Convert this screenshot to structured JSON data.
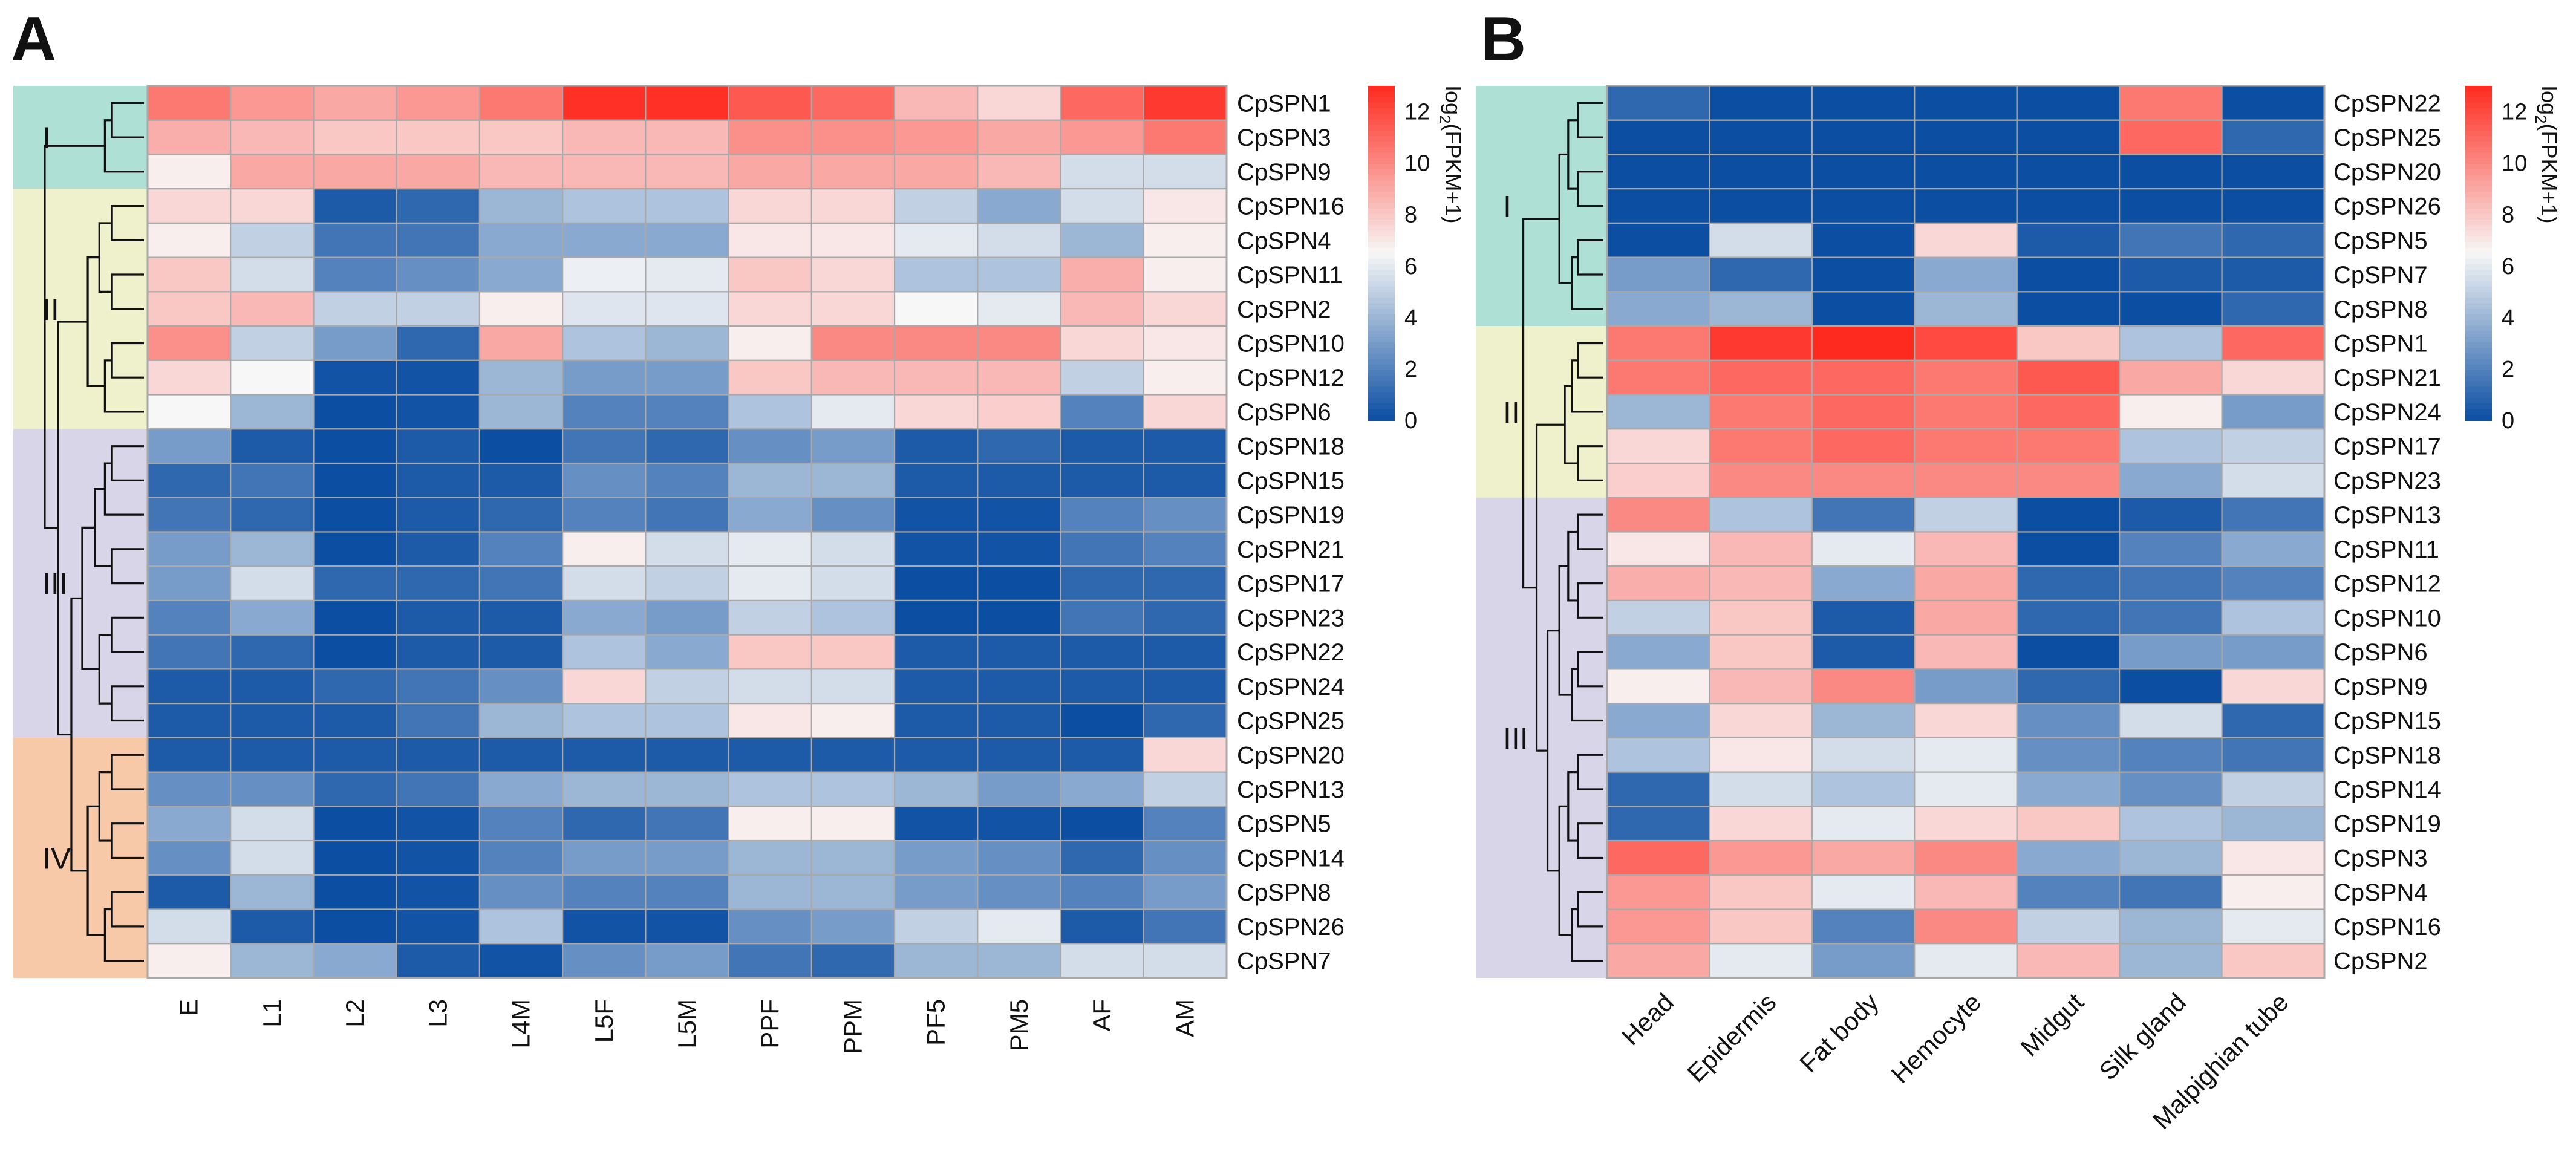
{
  "colors": {
    "low": "#0b4ea2",
    "mid": "#f7f7f7",
    "high": "#ff2a1f",
    "grid": "#a9a9a9",
    "group_I": "#aee0d6",
    "group_II": "#eff0cc",
    "group_III": "#d9d5e8",
    "group_IV": "#f7c9a8"
  },
  "chart_data": [
    {
      "panel": "A",
      "type": "heatmap",
      "title": "",
      "colorbar": {
        "label": "log2(FPKM+1)",
        "label_main": "log",
        "label_sub": "2",
        "label_rest": "(FPKM+1)",
        "min": 0,
        "max": 13,
        "ticks": [
          0,
          2,
          4,
          6,
          8,
          10,
          12
        ]
      },
      "columns": [
        "E",
        "L1",
        "L2",
        "L3",
        "L4M",
        "L5F",
        "L5M",
        "PPF",
        "PPM",
        "PF5",
        "PM5",
        "AF",
        "AM"
      ],
      "rows": [
        "CpSPN1",
        "CpSPN3",
        "CpSPN9",
        "CpSPN16",
        "CpSPN4",
        "CpSPN11",
        "CpSPN2",
        "CpSPN10",
        "CpSPN12",
        "CpSPN6",
        "CpSPN18",
        "CpSPN15",
        "CpSPN19",
        "CpSPN21",
        "CpSPN17",
        "CpSPN23",
        "CpSPN22",
        "CpSPN24",
        "CpSPN25",
        "CpSPN20",
        "CpSPN13",
        "CpSPN5",
        "CpSPN14",
        "CpSPN8",
        "CpSPN26",
        "CpSPN7"
      ],
      "values": [
        [
          10.5,
          9.5,
          9,
          9.5,
          10.5,
          12.8,
          12.8,
          11.5,
          11,
          8.5,
          7.5,
          11,
          12.5
        ],
        [
          8.8,
          8.5,
          8,
          8,
          8,
          8.5,
          8.5,
          9.8,
          9.8,
          9.5,
          9,
          9.5,
          10.5
        ],
        [
          6.8,
          9,
          9,
          9,
          8.5,
          8.5,
          8.5,
          9,
          9,
          9,
          8.5,
          5.5,
          5.5
        ],
        [
          7.5,
          7.5,
          0.5,
          1,
          4,
          4.5,
          4.5,
          7.5,
          7.5,
          5,
          3.5,
          5.5,
          7
        ],
        [
          6.8,
          5,
          1.5,
          1.5,
          3.5,
          3.5,
          3.5,
          7,
          7,
          6,
          5.5,
          4,
          6.8
        ],
        [
          8,
          5.5,
          2,
          2.5,
          3.5,
          6.2,
          6,
          8,
          7.5,
          4.5,
          4.5,
          8.8,
          6.8
        ],
        [
          8,
          8.5,
          5,
          5,
          6.8,
          5.8,
          5.8,
          7.5,
          7.5,
          6.5,
          6,
          8.5,
          7.5
        ],
        [
          9.8,
          5,
          3,
          1,
          9,
          4.5,
          4,
          6.8,
          10,
          10,
          10,
          7.5,
          7
        ],
        [
          7.5,
          6.5,
          0.2,
          0.2,
          4,
          3,
          3,
          8,
          8.5,
          8.5,
          8.5,
          5,
          6.8
        ],
        [
          6.5,
          4,
          0,
          0.2,
          4,
          2,
          2,
          4.5,
          6,
          7.5,
          7.8,
          2,
          7.5
        ],
        [
          3,
          0.5,
          0,
          0.5,
          0,
          1.5,
          1,
          2.5,
          3,
          0.5,
          1,
          0.5,
          0.5
        ],
        [
          1,
          1.5,
          0,
          0.5,
          0.5,
          2.5,
          2,
          4,
          4,
          0.5,
          0.5,
          0.5,
          0.5
        ],
        [
          1.5,
          1,
          0,
          0.5,
          1,
          2,
          1.5,
          3.5,
          2.5,
          0.2,
          0.2,
          2,
          2.5
        ],
        [
          3,
          4,
          0,
          0.5,
          2,
          6.8,
          5.5,
          6,
          5.5,
          0.2,
          0.2,
          1.5,
          2
        ],
        [
          3,
          5.5,
          1,
          1,
          1.5,
          5.5,
          5,
          6,
          5.5,
          0,
          0,
          1,
          1
        ],
        [
          2,
          3.5,
          0,
          0.5,
          0.5,
          3.5,
          3,
          5,
          4.5,
          0,
          0,
          1.5,
          1
        ],
        [
          1.5,
          1,
          0,
          0.5,
          0.5,
          4.5,
          3.5,
          8,
          8,
          0.5,
          0.5,
          0.5,
          0.5
        ],
        [
          0.5,
          0.5,
          1,
          1.5,
          2.5,
          7.5,
          5,
          5.5,
          5.5,
          0.5,
          0.5,
          0.5,
          0.5
        ],
        [
          0.5,
          0.5,
          0.5,
          1.5,
          4,
          4.5,
          4.5,
          7,
          6.8,
          0.5,
          0.5,
          0,
          1
        ],
        [
          0.5,
          0.5,
          0.5,
          0.5,
          0.5,
          0.5,
          0.5,
          0.5,
          0.5,
          0.5,
          0.5,
          0.5,
          7.5
        ],
        [
          2.5,
          2.5,
          1,
          1.5,
          3.5,
          4,
          4,
          4.5,
          4.5,
          4,
          3,
          3.5,
          5
        ],
        [
          3.5,
          5.5,
          0,
          0.2,
          2,
          1,
          1.5,
          6.8,
          6.8,
          0.2,
          0.2,
          0,
          2
        ],
        [
          2.5,
          5.5,
          0,
          0.2,
          2,
          3,
          3,
          4,
          4,
          3,
          2.5,
          1,
          2.5
        ],
        [
          0.5,
          4,
          0,
          0.2,
          2.5,
          2,
          2,
          4,
          4,
          3,
          2.5,
          2,
          3
        ],
        [
          5.5,
          0.5,
          0,
          0.2,
          4.5,
          0.2,
          0.2,
          2.5,
          3,
          5,
          6,
          0.5,
          1.5
        ],
        [
          6.8,
          4,
          3.5,
          0.5,
          0.2,
          2.5,
          3,
          1.5,
          1,
          4,
          4,
          5.5,
          5.5
        ]
      ],
      "groups": [
        {
          "label": "I",
          "start": 0,
          "count": 3,
          "color": "group_I"
        },
        {
          "label": "II",
          "start": 3,
          "count": 7,
          "color": "group_II"
        },
        {
          "label": "III",
          "start": 10,
          "count": 9,
          "color": "group_III"
        },
        {
          "label": "IV",
          "start": 19,
          "count": 7,
          "color": "group_IV"
        }
      ]
    },
    {
      "panel": "B",
      "type": "heatmap",
      "title": "",
      "colorbar": {
        "label": "log2(FPKM+1)",
        "label_main": "log",
        "label_sub": "2",
        "label_rest": "(FPKM+1)",
        "min": 0,
        "max": 13,
        "ticks": [
          0,
          2,
          4,
          6,
          8,
          10,
          12
        ]
      },
      "columns": [
        "Head",
        "Epidermis",
        "Fat body",
        "Hemocyte",
        "Midgut",
        "Silk gland",
        "Malpighian tube"
      ],
      "rows": [
        "CpSPN22",
        "CpSPN25",
        "CpSPN20",
        "CpSPN26",
        "CpSPN5",
        "CpSPN7",
        "CpSPN8",
        "CpSPN1",
        "CpSPN21",
        "CpSPN24",
        "CpSPN17",
        "CpSPN23",
        "CpSPN13",
        "CpSPN11",
        "CpSPN12",
        "CpSPN10",
        "CpSPN6",
        "CpSPN9",
        "CpSPN15",
        "CpSPN18",
        "CpSPN14",
        "CpSPN19",
        "CpSPN3",
        "CpSPN4",
        "CpSPN16",
        "CpSPN2"
      ],
      "values": [
        [
          1,
          0,
          0,
          0,
          0,
          10.5,
          0
        ],
        [
          0,
          0,
          0,
          0,
          0,
          11,
          1
        ],
        [
          0,
          0,
          0,
          0,
          0,
          0,
          0
        ],
        [
          0,
          0,
          0,
          0,
          0,
          0,
          0
        ],
        [
          0,
          5.5,
          0,
          7.5,
          0.5,
          1.5,
          1
        ],
        [
          3,
          1,
          0,
          3.5,
          0,
          0.5,
          0.5
        ],
        [
          3.5,
          4,
          0,
          4,
          0,
          0,
          1
        ],
        [
          10.5,
          12.5,
          13,
          12,
          8,
          4.5,
          11
        ],
        [
          10.5,
          11,
          11,
          10.5,
          11.5,
          9,
          7.5
        ],
        [
          4,
          10.5,
          11,
          10.5,
          11,
          6.8,
          3
        ],
        [
          7.5,
          10.5,
          11,
          10.5,
          10.5,
          4.5,
          5
        ],
        [
          7.8,
          10,
          10,
          10,
          10,
          3.5,
          5.5
        ],
        [
          10,
          4.5,
          1.5,
          5,
          0,
          0.5,
          1.5
        ],
        [
          7,
          8.5,
          6,
          8.5,
          0,
          2,
          3.5
        ],
        [
          8.8,
          8.5,
          3.5,
          9,
          1,
          1.5,
          2
        ],
        [
          5,
          8,
          0.5,
          9,
          1,
          1.5,
          4.5
        ],
        [
          3.5,
          8,
          0.5,
          8.5,
          0,
          3,
          3
        ],
        [
          6.8,
          8.5,
          10,
          3,
          1,
          0,
          7.5
        ],
        [
          3.5,
          7.5,
          4,
          7.5,
          2.5,
          5.5,
          1
        ],
        [
          4.5,
          7,
          5.5,
          6,
          2.5,
          2,
          1.5
        ],
        [
          1,
          5.5,
          4.5,
          6,
          3.5,
          2.5,
          5
        ],
        [
          1,
          7.5,
          6,
          7.5,
          8,
          4.5,
          4
        ],
        [
          11,
          9.5,
          9,
          10,
          3.5,
          4,
          7
        ],
        [
          9.5,
          8,
          6,
          8.5,
          2,
          1.5,
          6.8
        ],
        [
          9.5,
          8,
          2,
          10,
          5,
          4,
          6
        ],
        [
          9,
          6,
          3,
          6,
          8.5,
          4,
          8
        ]
      ],
      "groups": [
        {
          "label": "I",
          "start": 0,
          "count": 7,
          "color": "group_I"
        },
        {
          "label": "II",
          "start": 7,
          "count": 5,
          "color": "group_II"
        },
        {
          "label": "III",
          "start": 12,
          "count": 14,
          "color": "group_III"
        }
      ]
    }
  ]
}
